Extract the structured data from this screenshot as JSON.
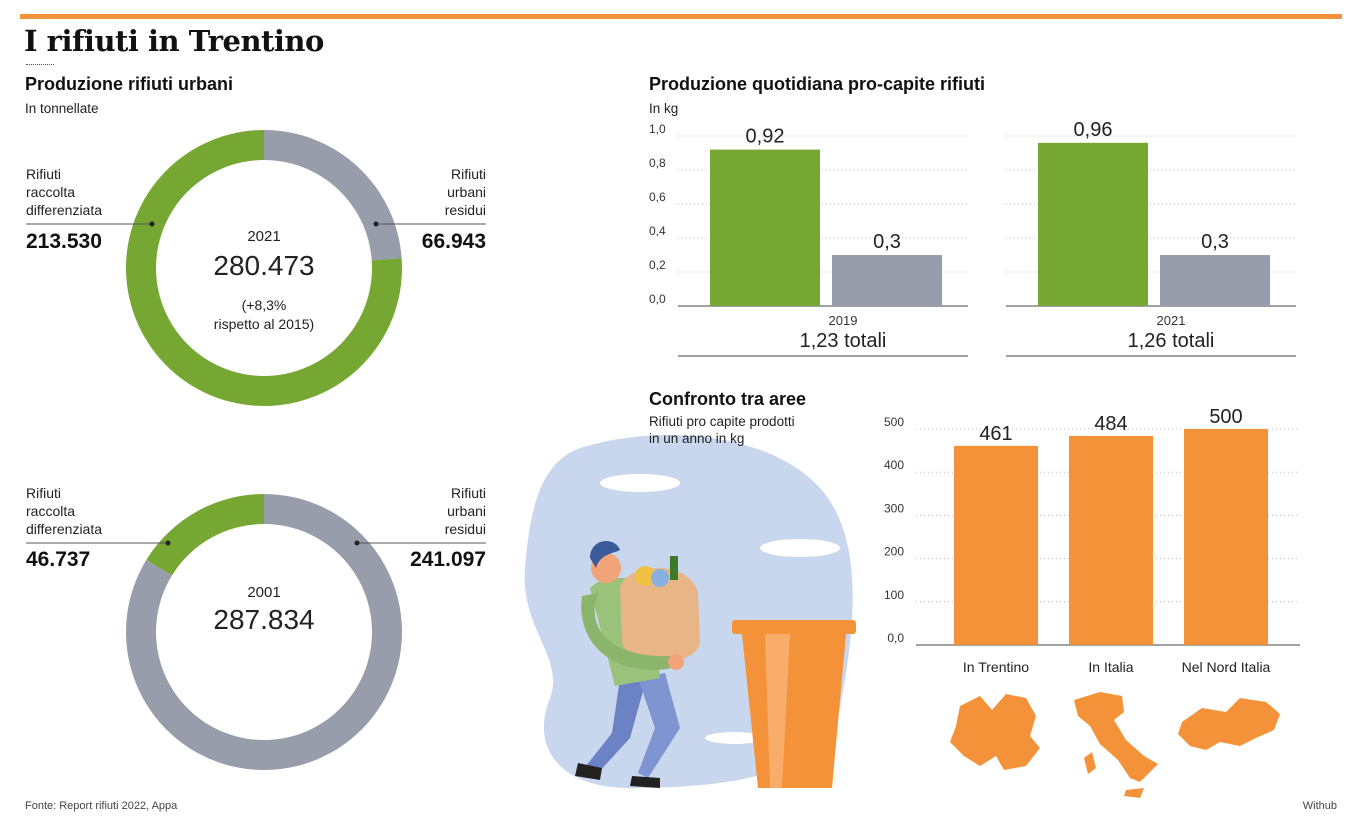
{
  "title": "I rifiuti in Trentino",
  "donut_section": {
    "title": "Produzione rifiuti urbani",
    "subtitle": "In tonnellate"
  },
  "chart_data": [
    {
      "type": "pie",
      "title": "2021",
      "total": "280.473",
      "note_line1": "(+8,3%",
      "note_line2": "rispetto al 2015)",
      "slices": [
        {
          "name": "Rifiuti raccolta differenziata",
          "label_lines": [
            "Rifiuti",
            "raccolta",
            "differenziata"
          ],
          "value": 213530,
          "display": "213.530",
          "color": "#76a733"
        },
        {
          "name": "Rifiuti urbani residui",
          "label_lines": [
            "Rifiuti",
            "urbani",
            "residui"
          ],
          "value": 66943,
          "display": "66.943",
          "color": "#979dab"
        }
      ]
    },
    {
      "type": "pie",
      "title": "2001",
      "total": "287.834",
      "slices": [
        {
          "name": "Rifiuti raccolta differenziata",
          "label_lines": [
            "Rifiuti",
            "raccolta",
            "differenziata"
          ],
          "value": 46737,
          "display": "46.737",
          "color": "#76a733"
        },
        {
          "name": "Rifiuti urbani residui",
          "label_lines": [
            "Rifiuti",
            "urbani",
            "residui"
          ],
          "value": 241097,
          "display": "241.097",
          "color": "#979dab"
        }
      ]
    },
    {
      "type": "bar",
      "title": "Produzione quotidiana pro-capite rifiuti",
      "ylabel": "In kg",
      "ylim": [
        0,
        1.0
      ],
      "yticks": [
        "0,0",
        "0,2",
        "0,4",
        "0,6",
        "0,8",
        "1,0"
      ],
      "groups": [
        {
          "year": "2019",
          "total": "1,23 totali",
          "values": [
            0.92,
            0.3
          ],
          "labels": [
            "0,92",
            "0,3"
          ]
        },
        {
          "year": "2021",
          "total": "1,26 totali",
          "values": [
            0.96,
            0.3
          ],
          "labels": [
            "0,96",
            "0,3"
          ]
        }
      ],
      "colors": [
        "#76a733",
        "#979dab"
      ]
    },
    {
      "type": "bar",
      "title": "Confronto tra aree",
      "subtitle_lines": [
        "Rifiuti pro capite prodotti",
        "in un anno in kg"
      ],
      "ylim": [
        0,
        500
      ],
      "yticks": [
        "0,0",
        "100",
        "200",
        "300",
        "400",
        "500"
      ],
      "categories": [
        "In Trentino",
        "In Italia",
        "Nel Nord Italia"
      ],
      "values": [
        461,
        484,
        500
      ],
      "color": "#f4923a"
    }
  ],
  "footer": {
    "source": "Fonte: Report rifiuti 2022, Appa",
    "credit": "Withub"
  },
  "illustration": {
    "icon": "person-carrying-recycling-bag-illustration"
  },
  "maps": [
    {
      "icon": "trentino-map-icon"
    },
    {
      "icon": "italy-map-icon"
    },
    {
      "icon": "north-italy-map-icon"
    }
  ]
}
